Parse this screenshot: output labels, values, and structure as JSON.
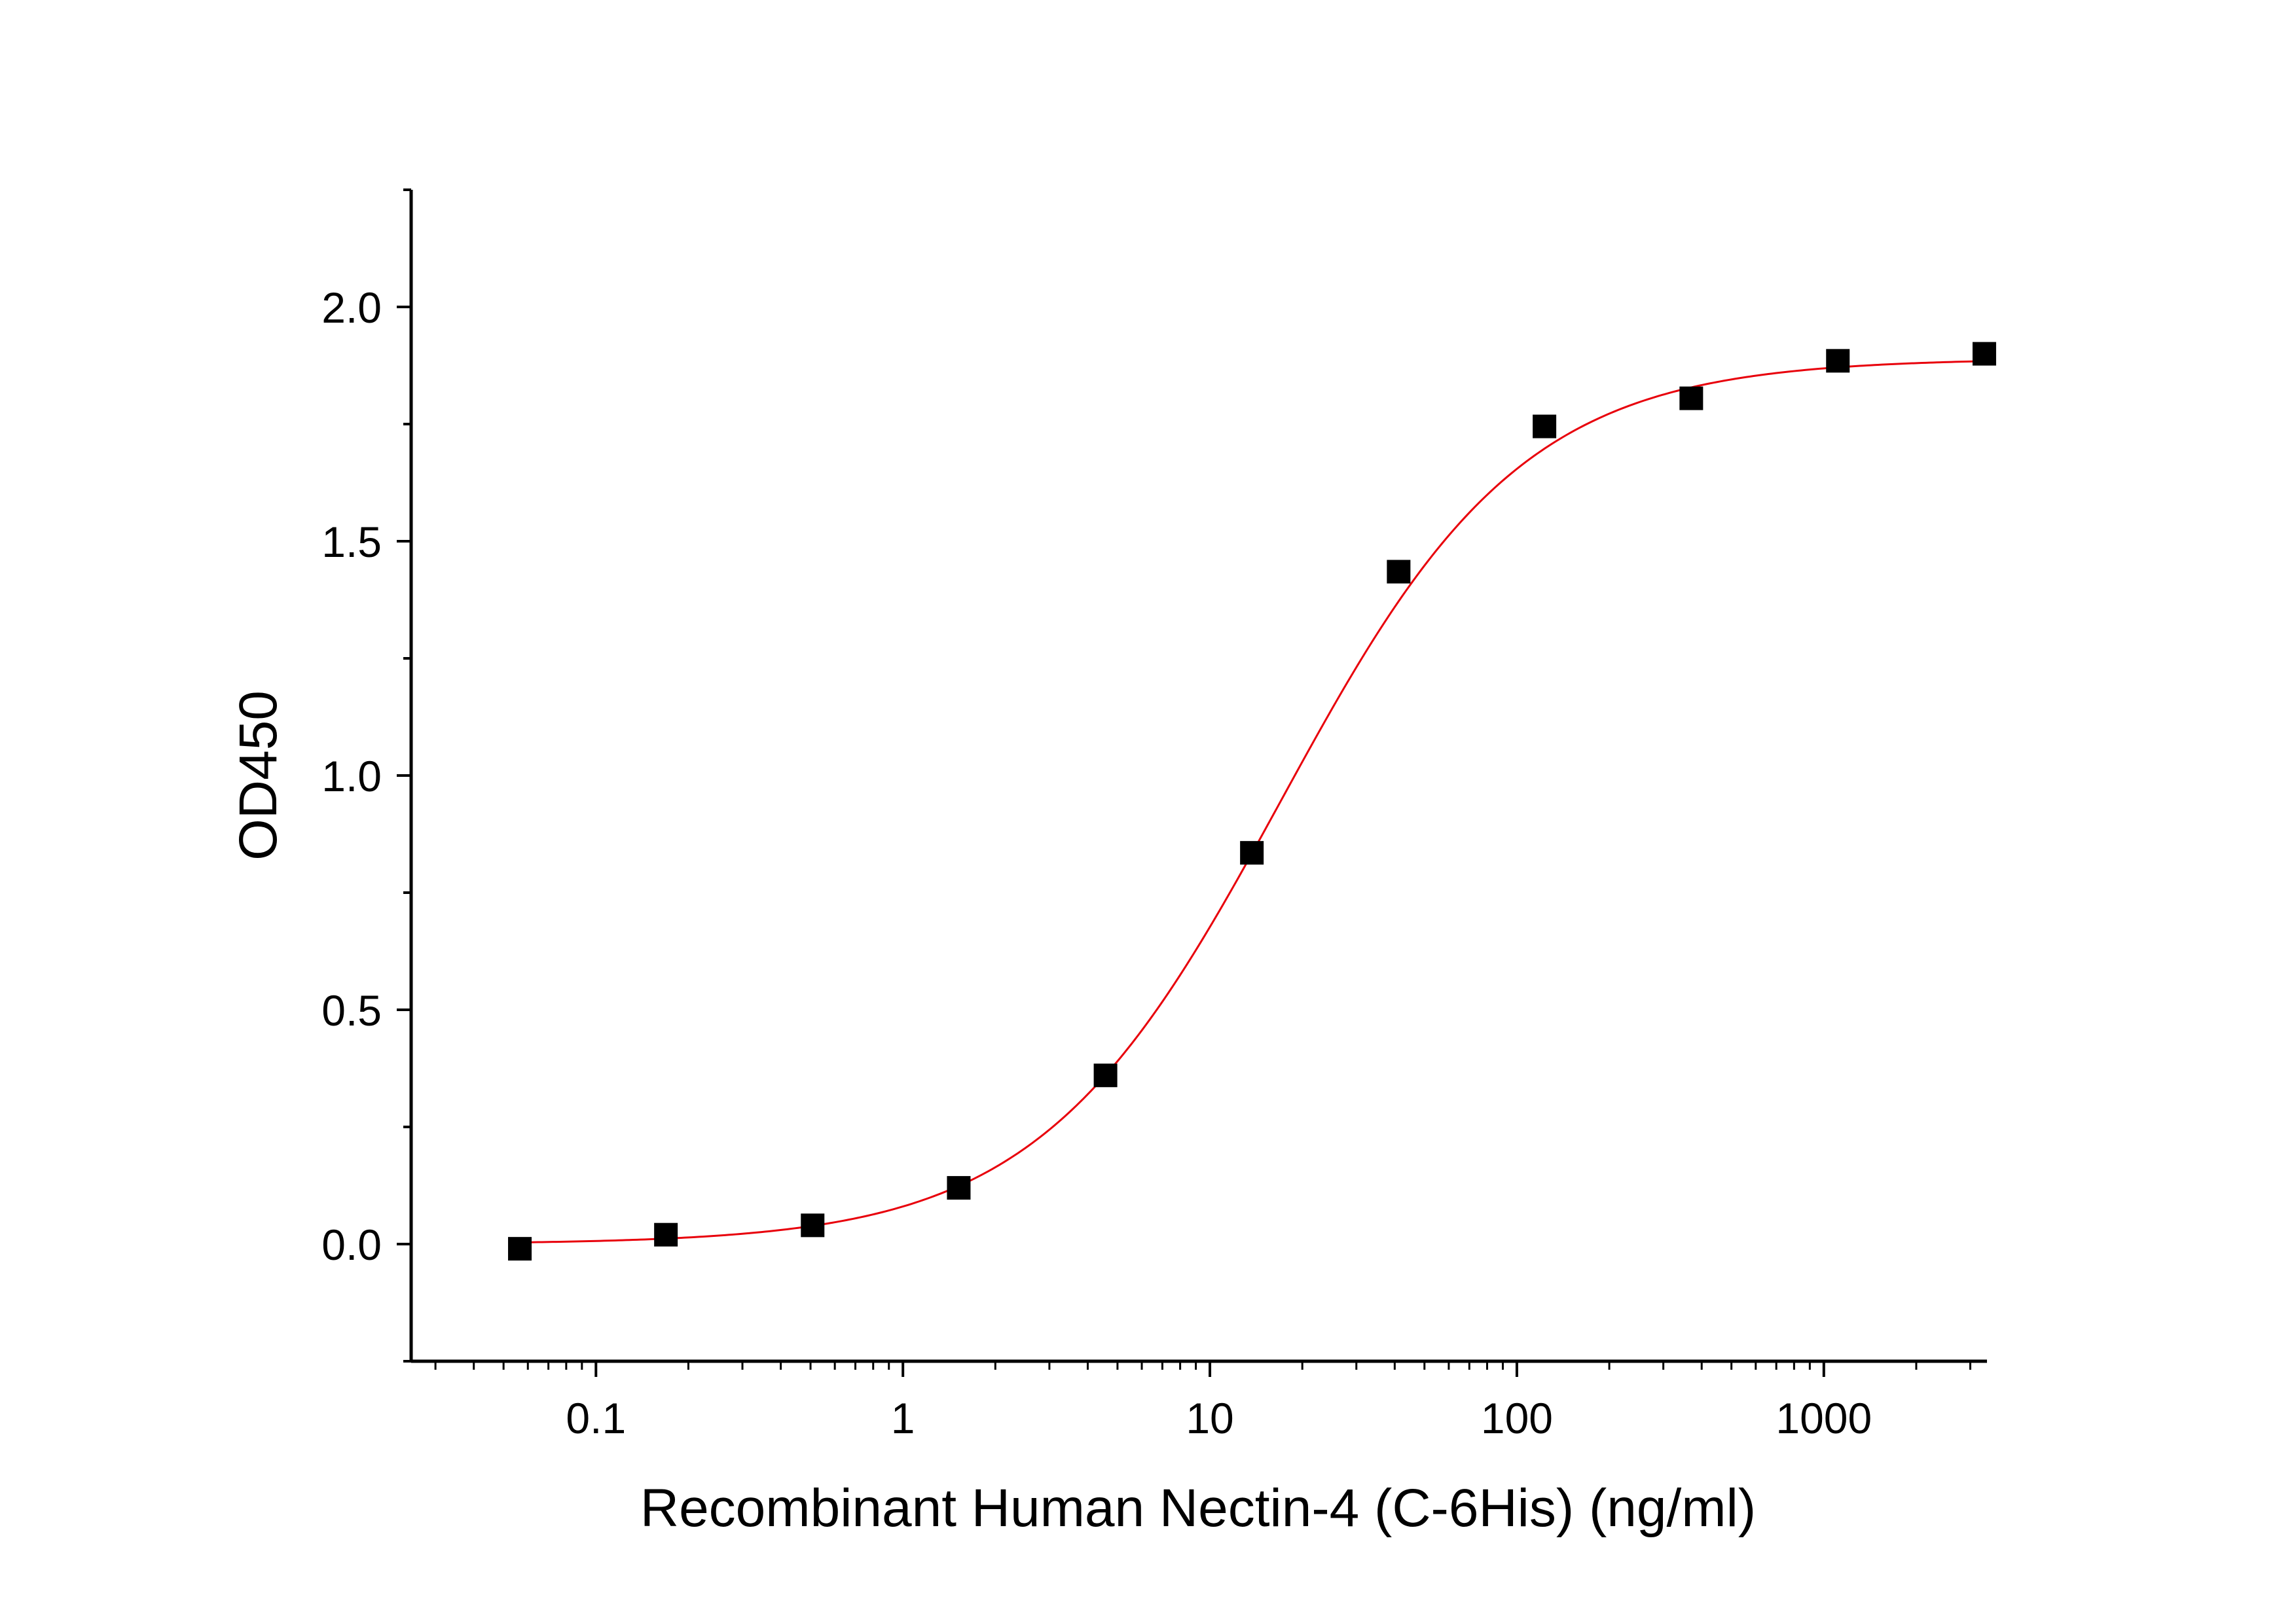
{
  "chart_data": {
    "type": "scatter",
    "title": "",
    "xlabel": "Recombinant Human Nectin-4 (C-6His) (ng/ml)",
    "ylabel": "OD450",
    "x_scale": "log",
    "xlim": [
      0.025,
      3400
    ],
    "ylim": [
      -0.25,
      2.25
    ],
    "x_ticks": [
      0.1,
      1,
      10,
      100,
      1000
    ],
    "x_tick_labels": [
      "0.1",
      "1",
      "10",
      "100",
      "1000"
    ],
    "y_ticks": [
      0.0,
      0.5,
      1.0,
      1.5,
      2.0
    ],
    "y_tick_labels": [
      "0.0",
      "0.5",
      "1.0",
      "1.5",
      "2.0"
    ],
    "grid": false,
    "legend": "none",
    "series": [
      {
        "marker": "square",
        "color": "#000000",
        "x": [
          0.0565,
          0.169,
          0.508,
          1.52,
          4.57,
          13.7,
          41.2,
          123,
          370,
          1111,
          3333
        ],
        "y": [
          -0.01,
          0.02,
          0.04,
          0.12,
          0.36,
          0.835,
          1.435,
          1.745,
          1.805,
          1.885,
          1.9
        ]
      }
    ],
    "fit_curve": {
      "model": "4PL",
      "color": "#e8000b",
      "bottom": 0.0,
      "top": 1.89,
      "ec50": 17.0,
      "hill": 1.1
    }
  }
}
